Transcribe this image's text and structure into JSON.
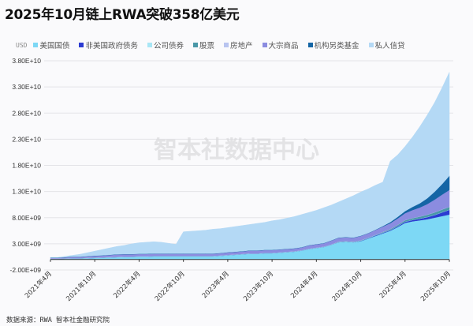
{
  "title": "2025年10月链上RWA突破358亿美元",
  "source": "数据来源：RWA 智本社金融研究院",
  "watermark": "智本社数据中心",
  "chart_data": {
    "type": "area",
    "stacked": true,
    "unit": "USD",
    "ylim": [
      -2000000000,
      38000000000
    ],
    "yticks": [
      "-2.00E+09",
      "3.00E+09",
      "8.00E+09",
      "1.30E+10",
      "1.80E+10",
      "2.30E+10",
      "2.80E+10",
      "3.30E+10",
      "3.80E+10"
    ],
    "ytick_values": [
      -2,
      3,
      8,
      13,
      18,
      23,
      28,
      33,
      38
    ],
    "value_scale": "1e9 USD",
    "xticks": [
      "2021年4月",
      "2021年10月",
      "2022年4月",
      "2022年10月",
      "2023年4月",
      "2023年10月",
      "2024年4月",
      "2024年10月",
      "2025年4月",
      "2025年10月"
    ],
    "x_start": "2021-04",
    "x_end": "2025-10",
    "x_step": "monthly",
    "grid": true,
    "legend_position": "top",
    "series": [
      {
        "name": "美国国债",
        "color": "#7dd8f5",
        "values": [
          0.1,
          0.1,
          0.15,
          0.2,
          0.2,
          0.25,
          0.3,
          0.35,
          0.4,
          0.45,
          0.5,
          0.5,
          0.55,
          0.55,
          0.6,
          0.6,
          0.6,
          0.6,
          0.6,
          0.6,
          0.6,
          0.6,
          0.6,
          0.7,
          0.8,
          0.9,
          1.0,
          1.1,
          1.1,
          1.2,
          1.2,
          1.3,
          1.4,
          1.5,
          1.7,
          2.0,
          2.2,
          2.4,
          2.8,
          3.3,
          3.4,
          3.3,
          3.5,
          4.0,
          4.5,
          5.0,
          5.5,
          6.2,
          7.0,
          7.3,
          7.5,
          7.7,
          8.0,
          8.3,
          8.6
        ]
      },
      {
        "name": "非美国政府债务",
        "color": "#2b3bd1",
        "values": [
          0,
          0,
          0,
          0,
          0,
          0,
          0,
          0,
          0,
          0,
          0,
          0,
          0,
          0,
          0,
          0,
          0,
          0,
          0,
          0,
          0,
          0,
          0,
          0,
          0,
          0,
          0,
          0,
          0,
          0,
          0,
          0,
          0,
          0,
          0,
          0,
          0,
          0,
          0,
          0,
          0,
          0,
          0.05,
          0.05,
          0.1,
          0.1,
          0.1,
          0.15,
          0.2,
          0.25,
          0.3,
          0.4,
          0.5,
          0.7,
          0.9
        ]
      },
      {
        "name": "公司债券",
        "color": "#a8e6f5",
        "values": [
          0.05,
          0.05,
          0.05,
          0.05,
          0.05,
          0.05,
          0.05,
          0.05,
          0.05,
          0.05,
          0.05,
          0.05,
          0.05,
          0.05,
          0.05,
          0.05,
          0.05,
          0.05,
          0.05,
          0.05,
          0.05,
          0.05,
          0.05,
          0.05,
          0.05,
          0.05,
          0.05,
          0.05,
          0.05,
          0.05,
          0.05,
          0.05,
          0.05,
          0.05,
          0.05,
          0.05,
          0.05,
          0.05,
          0.05,
          0.05,
          0.05,
          0.05,
          0.05,
          0.05,
          0.05,
          0.05,
          0.05,
          0.05,
          0.05,
          0.05,
          0.05,
          0.05,
          0.05,
          0.05,
          0.05
        ]
      },
      {
        "name": "股票",
        "color": "#4a98a8",
        "values": [
          0,
          0,
          0,
          0,
          0,
          0,
          0,
          0,
          0,
          0,
          0,
          0,
          0,
          0,
          0,
          0,
          0,
          0,
          0,
          0,
          0,
          0,
          0,
          0,
          0,
          0,
          0,
          0,
          0,
          0,
          0,
          0,
          0,
          0,
          0,
          0,
          0,
          0,
          0,
          0.05,
          0.05,
          0.05,
          0.05,
          0.05,
          0.05,
          0.1,
          0.15,
          0.2,
          0.25,
          0.3,
          0.35,
          0.4,
          0.45,
          0.5,
          0.5
        ]
      },
      {
        "name": "房地产",
        "color": "#b8c4f0",
        "values": [
          0.05,
          0.05,
          0.05,
          0.05,
          0.05,
          0.05,
          0.05,
          0.05,
          0.05,
          0.05,
          0.05,
          0.05,
          0.05,
          0.05,
          0.05,
          0.05,
          0.05,
          0.05,
          0.05,
          0.05,
          0.05,
          0.05,
          0.05,
          0.05,
          0.05,
          0.05,
          0.05,
          0.05,
          0.05,
          0.05,
          0.05,
          0.05,
          0.05,
          0.05,
          0.05,
          0.05,
          0.05,
          0.05,
          0.05,
          0.05,
          0.05,
          0.05,
          0.05,
          0.05,
          0.05,
          0.05,
          0.05,
          0.05,
          0.05,
          0.05,
          0.05,
          0.05,
          0.05,
          0.05,
          0.05
        ]
      },
      {
        "name": "大宗商品",
        "color": "#8b8ce0",
        "values": [
          0.1,
          0.1,
          0.15,
          0.2,
          0.2,
          0.25,
          0.3,
          0.3,
          0.35,
          0.4,
          0.4,
          0.4,
          0.4,
          0.4,
          0.4,
          0.4,
          0.4,
          0.4,
          0.4,
          0.4,
          0.4,
          0.4,
          0.4,
          0.4,
          0.45,
          0.45,
          0.45,
          0.5,
          0.5,
          0.5,
          0.5,
          0.5,
          0.5,
          0.5,
          0.5,
          0.6,
          0.6,
          0.6,
          0.7,
          0.7,
          0.7,
          0.7,
          0.8,
          0.8,
          0.9,
          1.0,
          1.1,
          1.2,
          1.3,
          1.5,
          1.7,
          2.0,
          2.4,
          2.8,
          3.2
        ]
      },
      {
        "name": "机构另类基金",
        "color": "#1465a5",
        "values": [
          0.05,
          0.05,
          0.05,
          0.05,
          0.05,
          0.05,
          0.05,
          0.05,
          0.05,
          0.05,
          0.05,
          0.05,
          0.05,
          0.05,
          0.05,
          0.05,
          0.05,
          0.05,
          0.05,
          0.05,
          0.05,
          0.05,
          0.05,
          0.05,
          0.05,
          0.05,
          0.05,
          0.05,
          0.05,
          0.05,
          0.05,
          0.05,
          0.05,
          0.05,
          0.05,
          0.05,
          0.05,
          0.05,
          0.05,
          0.05,
          0.05,
          0.05,
          0.05,
          0.05,
          0.05,
          0.1,
          0.2,
          0.3,
          0.4,
          0.6,
          0.8,
          1.1,
          1.5,
          2.0,
          2.7
        ]
      },
      {
        "name": "私人信贷",
        "color": "#b4d9f5",
        "values": [
          0.05,
          0.05,
          0.15,
          0.25,
          0.45,
          0.65,
          0.85,
          1.1,
          1.3,
          1.5,
          1.65,
          1.95,
          2.1,
          2.2,
          2.25,
          2.15,
          1.95,
          1.75,
          4.15,
          4.25,
          4.35,
          4.45,
          4.65,
          4.65,
          4.7,
          4.8,
          4.9,
          4.95,
          5.15,
          5.25,
          5.55,
          5.65,
          5.85,
          6.05,
          6.25,
          6.25,
          6.45,
          6.75,
          6.75,
          6.8,
          7.3,
          8.0,
          8.35,
          8.45,
          8.5,
          8.4,
          11.65,
          11.85,
          12.35,
          13.35,
          14.65,
          15.9,
          17.05,
          18.4,
          19.8
        ]
      }
    ]
  }
}
